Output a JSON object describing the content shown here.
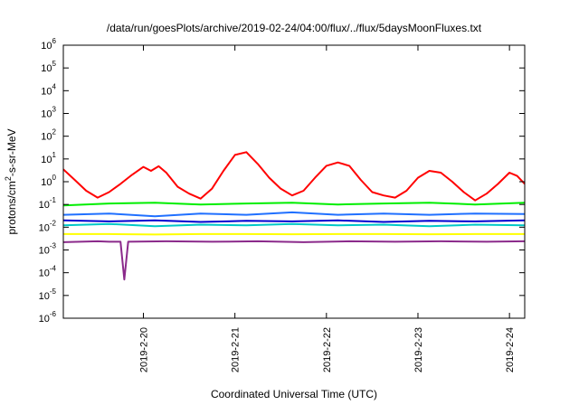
{
  "chart_data": {
    "type": "line",
    "title": "/data/run/goesPlots/archive/2019-02-24/04:00/flux/../flux/5daysMoonFluxes.txt",
    "xlabel": "Coordinated Universal Time (UTC)",
    "ylabel_parts": {
      "a": "protons/cm",
      "sup": "2",
      "b": "-s-sr-MeV"
    },
    "y_scale": "log",
    "ylim": [
      1e-06,
      1000000.0
    ],
    "y_ticks": [
      {
        "base": "10",
        "exp": "-6"
      },
      {
        "base": "10",
        "exp": "-5"
      },
      {
        "base": "10",
        "exp": "-4"
      },
      {
        "base": "10",
        "exp": "-3"
      },
      {
        "base": "10",
        "exp": "-2"
      },
      {
        "base": "10",
        "exp": "-1"
      },
      {
        "base": "10",
        "exp": "0"
      },
      {
        "base": "10",
        "exp": "1"
      },
      {
        "base": "10",
        "exp": "2"
      },
      {
        "base": "10",
        "exp": "3"
      },
      {
        "base": "10",
        "exp": "4"
      },
      {
        "base": "10",
        "exp": "5"
      },
      {
        "base": "10",
        "exp": "6"
      }
    ],
    "xlim": [
      "2019-02-19T03:00",
      "2019-02-24T04:00"
    ],
    "x_ticks": [
      "2019-2-20",
      "2019-2-21",
      "2019-2-22",
      "2019-2-23",
      "2019-2-24"
    ],
    "grid": false,
    "series": [
      {
        "color": "#ff0000",
        "x": [
          "2019-02-19T03:00",
          "2019-02-19T06:00",
          "2019-02-19T09:00",
          "2019-02-19T12:00",
          "2019-02-19T15:00",
          "2019-02-19T18:00",
          "2019-02-19T21:00",
          "2019-02-20T00:00",
          "2019-02-20T02:00",
          "2019-02-20T04:00",
          "2019-02-20T06:00",
          "2019-02-20T09:00",
          "2019-02-20T12:00",
          "2019-02-20T15:00",
          "2019-02-20T18:00",
          "2019-02-20T21:00",
          "2019-02-21T00:00",
          "2019-02-21T03:00",
          "2019-02-21T06:00",
          "2019-02-21T09:00",
          "2019-02-21T12:00",
          "2019-02-21T15:00",
          "2019-02-21T18:00",
          "2019-02-21T21:00",
          "2019-02-22T00:00",
          "2019-02-22T03:00",
          "2019-02-22T06:00",
          "2019-02-22T09:00",
          "2019-02-22T12:00",
          "2019-02-22T15:00",
          "2019-02-22T18:00",
          "2019-02-22T21:00",
          "2019-02-23T00:00",
          "2019-02-23T03:00",
          "2019-02-23T06:00",
          "2019-02-23T09:00",
          "2019-02-23T12:00",
          "2019-02-23T15:00",
          "2019-02-23T18:00",
          "2019-02-23T21:00",
          "2019-02-24T00:00",
          "2019-02-24T02:00",
          "2019-02-24T04:00"
        ],
        "y": [
          3.5,
          1.2,
          0.4,
          0.2,
          0.35,
          0.8,
          2.0,
          4.5,
          3.0,
          4.8,
          2.5,
          0.6,
          0.3,
          0.18,
          0.5,
          3.0,
          15,
          20,
          6,
          1.5,
          0.5,
          0.25,
          0.4,
          1.5,
          5,
          7,
          5,
          1.2,
          0.35,
          0.25,
          0.2,
          0.4,
          1.5,
          3,
          2.5,
          1.0,
          0.35,
          0.15,
          0.3,
          0.8,
          2.5,
          1.8,
          0.8
        ]
      },
      {
        "color": "#00ee00",
        "x": [
          "2019-02-19T03:00",
          "2019-02-19T15:00",
          "2019-02-20T03:00",
          "2019-02-20T15:00",
          "2019-02-21T03:00",
          "2019-02-21T15:00",
          "2019-02-22T03:00",
          "2019-02-22T15:00",
          "2019-02-23T03:00",
          "2019-02-23T15:00",
          "2019-02-24T04:00"
        ],
        "y": [
          0.09,
          0.11,
          0.12,
          0.1,
          0.11,
          0.12,
          0.1,
          0.11,
          0.12,
          0.1,
          0.12
        ]
      },
      {
        "color": "#00c8c8",
        "x": [
          "2019-02-19T03:00",
          "2019-02-19T15:00",
          "2019-02-20T03:00",
          "2019-02-20T15:00",
          "2019-02-21T03:00",
          "2019-02-21T15:00",
          "2019-02-22T03:00",
          "2019-02-22T15:00",
          "2019-02-23T03:00",
          "2019-02-23T15:00",
          "2019-02-24T04:00"
        ],
        "y": [
          0.012,
          0.014,
          0.011,
          0.013,
          0.012,
          0.014,
          0.012,
          0.013,
          0.011,
          0.013,
          0.012
        ]
      },
      {
        "color": "#2070ff",
        "x": [
          "2019-02-19T03:00",
          "2019-02-19T15:00",
          "2019-02-20T03:00",
          "2019-02-20T15:00",
          "2019-02-21T03:00",
          "2019-02-21T15:00",
          "2019-02-22T03:00",
          "2019-02-22T15:00",
          "2019-02-23T03:00",
          "2019-02-23T15:00",
          "2019-02-24T04:00"
        ],
        "y": [
          0.035,
          0.04,
          0.03,
          0.04,
          0.035,
          0.045,
          0.035,
          0.04,
          0.035,
          0.04,
          0.038
        ]
      },
      {
        "color": "#0000d0",
        "x": [
          "2019-02-19T03:00",
          "2019-02-19T15:00",
          "2019-02-20T03:00",
          "2019-02-20T15:00",
          "2019-02-21T03:00",
          "2019-02-21T15:00",
          "2019-02-22T03:00",
          "2019-02-22T15:00",
          "2019-02-23T03:00",
          "2019-02-23T15:00",
          "2019-02-24T04:00"
        ],
        "y": [
          0.02,
          0.018,
          0.02,
          0.017,
          0.019,
          0.018,
          0.02,
          0.017,
          0.019,
          0.018,
          0.02
        ]
      },
      {
        "color": "#ffff00",
        "x": [
          "2019-02-19T03:00",
          "2019-02-19T15:00",
          "2019-02-20T03:00",
          "2019-02-20T15:00",
          "2019-02-21T03:00",
          "2019-02-21T15:00",
          "2019-02-22T03:00",
          "2019-02-22T15:00",
          "2019-02-23T03:00",
          "2019-02-23T15:00",
          "2019-02-24T04:00"
        ],
        "y": [
          0.005,
          0.005,
          0.0048,
          0.005,
          0.005,
          0.0049,
          0.005,
          0.005,
          0.0049,
          0.005,
          0.005
        ]
      },
      {
        "color": "#8b2a8b",
        "x": [
          "2019-02-19T03:00",
          "2019-02-19T12:00",
          "2019-02-19T15:00",
          "2019-02-19T18:00",
          "2019-02-19T19:00",
          "2019-02-19T20:00",
          "2019-02-20T06:00",
          "2019-02-20T18:00",
          "2019-02-21T06:00",
          "2019-02-21T18:00",
          "2019-02-22T06:00",
          "2019-02-22T18:00",
          "2019-02-23T06:00",
          "2019-02-23T18:00",
          "2019-02-24T04:00"
        ],
        "y": [
          0.0022,
          0.0024,
          0.0023,
          0.0023,
          5e-05,
          0.0023,
          0.0024,
          0.0023,
          0.0024,
          0.0022,
          0.0024,
          0.0023,
          0.0024,
          0.0023,
          0.0024
        ]
      }
    ]
  }
}
